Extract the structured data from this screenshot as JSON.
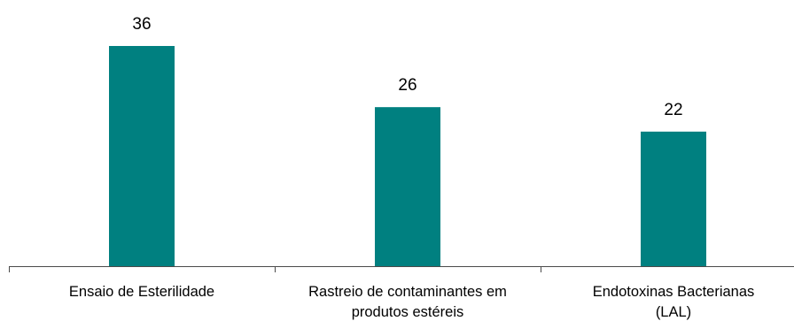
{
  "chart_data": {
    "type": "bar",
    "title": "",
    "xlabel": "",
    "ylabel": "",
    "categories": [
      [
        "Ensaio de Esterilidade"
      ],
      [
        "Rastreio de contaminantes em",
        "produtos estéreis"
      ],
      [
        "Endotoxinas Bacterianas",
        "(LAL)"
      ]
    ],
    "values": [
      36,
      26,
      22
    ],
    "data_labels": [
      "36",
      "26",
      "22"
    ],
    "ylim": [
      0,
      36
    ],
    "grid": false,
    "legend": "none",
    "bar_color": "#008080"
  }
}
